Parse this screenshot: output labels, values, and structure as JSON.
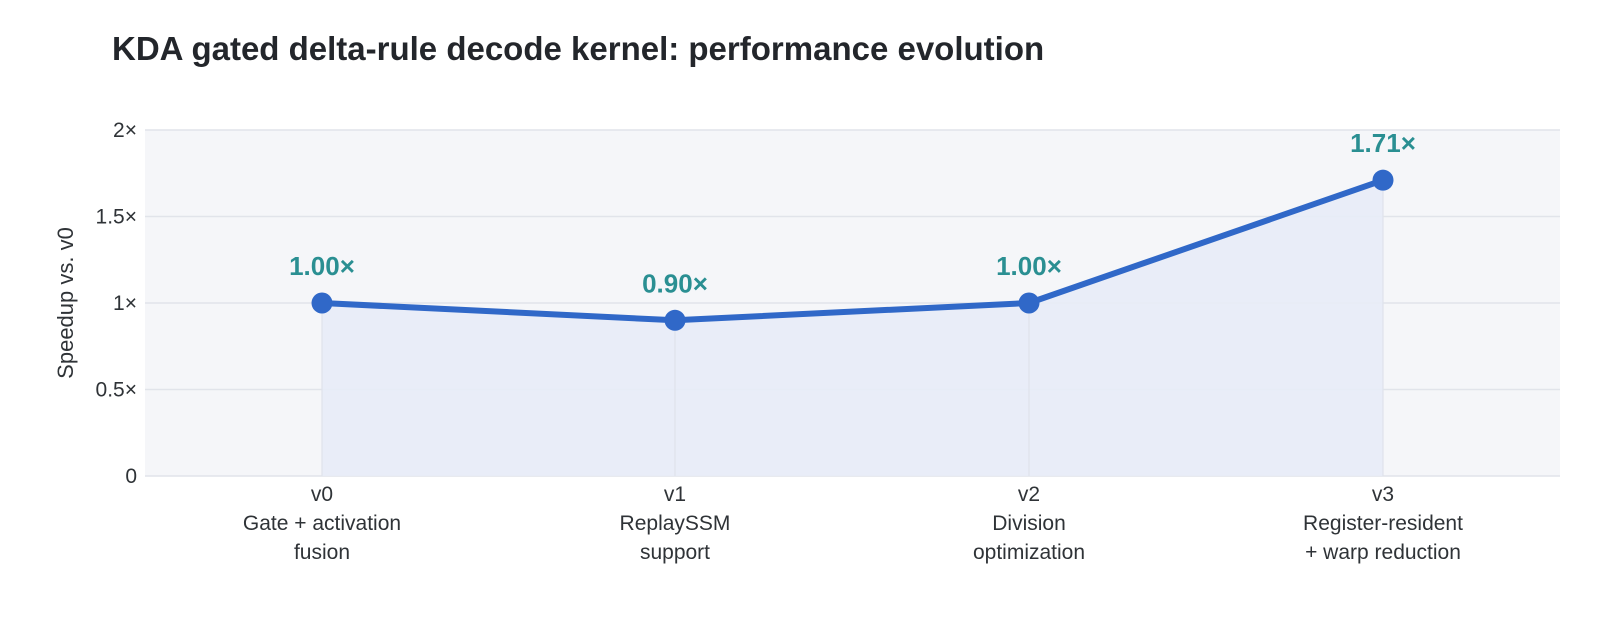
{
  "chart_data": {
    "type": "line",
    "title": "KDA gated delta-rule decode kernel: performance evolution",
    "xlabel": "",
    "ylabel": "Speedup vs. v0",
    "ylim": [
      0,
      2
    ],
    "yticks": [
      {
        "value": 0,
        "label": "0"
      },
      {
        "value": 0.5,
        "label": "0.5×"
      },
      {
        "value": 1,
        "label": "1×"
      },
      {
        "value": 1.5,
        "label": "1.5×"
      },
      {
        "value": 2,
        "label": "2×"
      }
    ],
    "categories": [
      {
        "version": "v0",
        "line1": "Gate + activation",
        "line2": "fusion"
      },
      {
        "version": "v1",
        "line1": "ReplaySSM",
        "line2": "support"
      },
      {
        "version": "v2",
        "line1": "Division",
        "line2": "optimization"
      },
      {
        "version": "v3",
        "line1": "Register-resident",
        "line2": "+ warp reduction"
      }
    ],
    "series": [
      {
        "values": [
          1.0,
          0.9,
          1.0,
          1.71
        ],
        "labels": [
          "1.00×",
          "0.90×",
          "1.00×",
          "1.71×"
        ]
      }
    ],
    "grid": true,
    "legend": "none",
    "colors": {
      "line": "#3068c8",
      "fill": "#e8ecf7",
      "plot_bg": "#f5f6f9",
      "grid": "#e1e4ea",
      "data_label": "#2a8f92"
    }
  }
}
